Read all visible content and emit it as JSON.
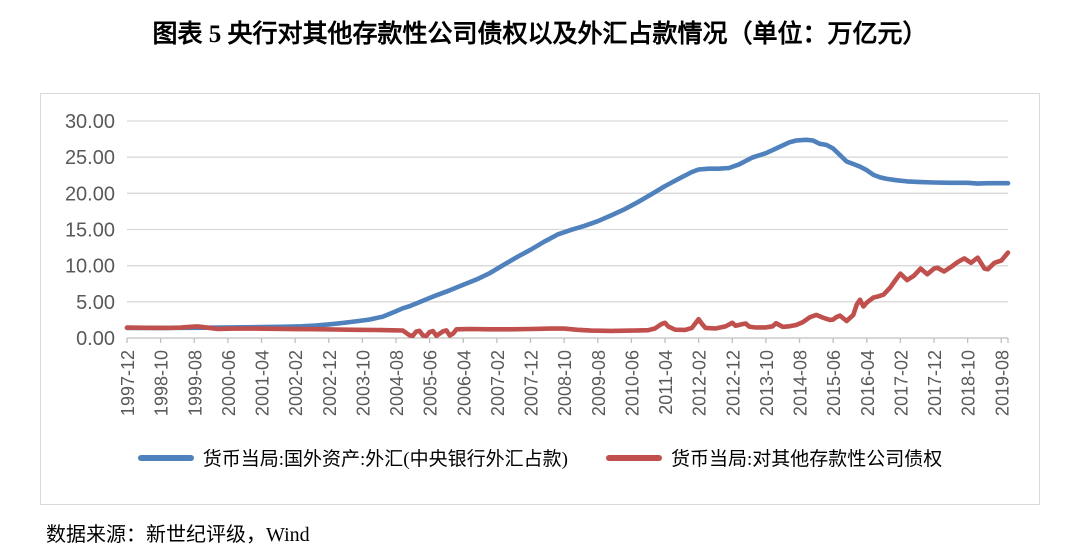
{
  "title": "图表 5  央行对其他存款性公司债权以及外汇占款情况（单位：万亿元）",
  "source": "数据来源：新世纪评级，Wind",
  "colors": {
    "fx_series": "#4f81bd",
    "claims_series": "#c0504d",
    "gridline": "#d9d9d9",
    "axis": "#bfbfbf",
    "tick_label": "#595959",
    "frame_border": "#d9d9d9"
  },
  "chart_data": {
    "type": "line",
    "title": "图表 5  央行对其他存款性公司债权以及外汇占款情况（单位：万亿元）",
    "unit": "万亿元",
    "grid": "horizontal",
    "legend_position": "bottom",
    "y_axis": {
      "min": 0,
      "max": 30,
      "step": 5,
      "tick_labels": [
        "0.00",
        "5.00",
        "10.00",
        "15.00",
        "20.00",
        "25.00",
        "30.00"
      ]
    },
    "x_axis": {
      "start": "1997-12",
      "end": "2019-08",
      "months_per_tick": 10,
      "month_span": 262,
      "tick_labels": [
        "1997-12",
        "1998-10",
        "1999-08",
        "2000-06",
        "2001-04",
        "2002-02",
        "2002-12",
        "2003-10",
        "2004-08",
        "2005-06",
        "2006-04",
        "2007-02",
        "2007-12",
        "2008-10",
        "2009-08",
        "2010-06",
        "2011-04",
        "2012-02",
        "2012-12",
        "2013-10",
        "2014-08",
        "2015-06",
        "2016-04",
        "2017-02",
        "2017-12",
        "2018-10",
        "2019-08"
      ]
    },
    "series": [
      {
        "id": "fx",
        "name": "货币当局:国外资产:外汇(中央银行外汇占款)",
        "color": "#4f81bd",
        "points": [
          [
            0,
            1.39
          ],
          [
            8,
            1.4
          ],
          [
            16,
            1.41
          ],
          [
            24,
            1.43
          ],
          [
            32,
            1.46
          ],
          [
            40,
            1.5
          ],
          [
            46,
            1.55
          ],
          [
            52,
            1.62
          ],
          [
            56,
            1.72
          ],
          [
            60,
            1.88
          ],
          [
            64,
            2.08
          ],
          [
            68,
            2.3
          ],
          [
            72,
            2.55
          ],
          [
            76,
            2.95
          ],
          [
            80,
            3.7
          ],
          [
            82,
            4.1
          ],
          [
            84,
            4.4
          ],
          [
            88,
            5.15
          ],
          [
            92,
            5.9
          ],
          [
            96,
            6.6
          ],
          [
            100,
            7.35
          ],
          [
            104,
            8.1
          ],
          [
            108,
            9.0
          ],
          [
            112,
            10.1
          ],
          [
            116,
            11.2
          ],
          [
            120,
            12.2
          ],
          [
            124,
            13.3
          ],
          [
            128,
            14.3
          ],
          [
            132,
            14.95
          ],
          [
            136,
            15.5
          ],
          [
            140,
            16.15
          ],
          [
            144,
            16.95
          ],
          [
            148,
            17.8
          ],
          [
            152,
            18.8
          ],
          [
            156,
            19.9
          ],
          [
            160,
            21.0
          ],
          [
            164,
            22.0
          ],
          [
            168,
            22.95
          ],
          [
            170,
            23.3
          ],
          [
            173,
            23.4
          ],
          [
            176,
            23.4
          ],
          [
            179,
            23.5
          ],
          [
            182,
            24.0
          ],
          [
            186,
            24.95
          ],
          [
            190,
            25.55
          ],
          [
            194,
            26.4
          ],
          [
            197,
            27.05
          ],
          [
            199,
            27.3
          ],
          [
            202,
            27.4
          ],
          [
            204,
            27.3
          ],
          [
            206,
            26.85
          ],
          [
            208,
            26.7
          ],
          [
            210,
            26.2
          ],
          [
            212,
            25.3
          ],
          [
            214,
            24.4
          ],
          [
            216,
            24.05
          ],
          [
            218,
            23.7
          ],
          [
            220,
            23.2
          ],
          [
            222,
            22.55
          ],
          [
            224,
            22.2
          ],
          [
            226,
            22.0
          ],
          [
            229,
            21.8
          ],
          [
            232,
            21.65
          ],
          [
            236,
            21.55
          ],
          [
            240,
            21.5
          ],
          [
            245,
            21.45
          ],
          [
            250,
            21.45
          ],
          [
            253,
            21.35
          ],
          [
            256,
            21.4
          ],
          [
            262,
            21.4
          ]
        ]
      },
      {
        "id": "claims",
        "name": "货币当局:对其他存款性公司债权",
        "color": "#c0504d",
        "points": [
          [
            0,
            1.44
          ],
          [
            6,
            1.41
          ],
          [
            12,
            1.4
          ],
          [
            16,
            1.44
          ],
          [
            19,
            1.55
          ],
          [
            21,
            1.6
          ],
          [
            24,
            1.42
          ],
          [
            27,
            1.25
          ],
          [
            30,
            1.28
          ],
          [
            34,
            1.32
          ],
          [
            38,
            1.3
          ],
          [
            44,
            1.27
          ],
          [
            50,
            1.23
          ],
          [
            56,
            1.21
          ],
          [
            62,
            1.18
          ],
          [
            68,
            1.14
          ],
          [
            74,
            1.1
          ],
          [
            79,
            1.07
          ],
          [
            82,
            1.04
          ],
          [
            84,
            0.38
          ],
          [
            85,
            0.3
          ],
          [
            86,
            0.88
          ],
          [
            87,
            1.0
          ],
          [
            88,
            0.34
          ],
          [
            89,
            0.28
          ],
          [
            90,
            0.82
          ],
          [
            91,
            0.95
          ],
          [
            92,
            0.3
          ],
          [
            94,
            0.92
          ],
          [
            95,
            1.05
          ],
          [
            96,
            0.35
          ],
          [
            97,
            0.62
          ],
          [
            98,
            1.2
          ],
          [
            102,
            1.24
          ],
          [
            108,
            1.2
          ],
          [
            114,
            1.2
          ],
          [
            120,
            1.25
          ],
          [
            126,
            1.3
          ],
          [
            130,
            1.3
          ],
          [
            134,
            1.14
          ],
          [
            138,
            1.02
          ],
          [
            144,
            0.98
          ],
          [
            150,
            1.02
          ],
          [
            155,
            1.08
          ],
          [
            157,
            1.32
          ],
          [
            159,
            1.95
          ],
          [
            160,
            2.1
          ],
          [
            161,
            1.58
          ],
          [
            163,
            1.15
          ],
          [
            166,
            1.12
          ],
          [
            168,
            1.4
          ],
          [
            170,
            2.6
          ],
          [
            171,
            1.95
          ],
          [
            172,
            1.4
          ],
          [
            175,
            1.32
          ],
          [
            178,
            1.6
          ],
          [
            180,
            2.1
          ],
          [
            181,
            1.68
          ],
          [
            183,
            1.92
          ],
          [
            184,
            2.0
          ],
          [
            185,
            1.58
          ],
          [
            187,
            1.45
          ],
          [
            190,
            1.46
          ],
          [
            192,
            1.62
          ],
          [
            193,
            2.05
          ],
          [
            195,
            1.55
          ],
          [
            197,
            1.62
          ],
          [
            199,
            1.8
          ],
          [
            201,
            2.2
          ],
          [
            203,
            2.85
          ],
          [
            205,
            3.2
          ],
          [
            207,
            2.8
          ],
          [
            209,
            2.5
          ],
          [
            210,
            2.55
          ],
          [
            211,
            2.9
          ],
          [
            212,
            3.1
          ],
          [
            214,
            2.35
          ],
          [
            216,
            3.2
          ],
          [
            217,
            4.6
          ],
          [
            218,
            5.3
          ],
          [
            219,
            4.35
          ],
          [
            220,
            4.9
          ],
          [
            222,
            5.6
          ],
          [
            223,
            5.7
          ],
          [
            225,
            6.0
          ],
          [
            227,
            7.0
          ],
          [
            229,
            8.3
          ],
          [
            230,
            8.9
          ],
          [
            232,
            8.0
          ],
          [
            234,
            8.6
          ],
          [
            236,
            9.6
          ],
          [
            238,
            8.8
          ],
          [
            240,
            9.6
          ],
          [
            241,
            9.7
          ],
          [
            243,
            9.2
          ],
          [
            245,
            9.8
          ],
          [
            247,
            10.5
          ],
          [
            249,
            11.0
          ],
          [
            251,
            10.4
          ],
          [
            253,
            11.1
          ],
          [
            255,
            9.6
          ],
          [
            256,
            9.5
          ],
          [
            258,
            10.4
          ],
          [
            260,
            10.7
          ],
          [
            262,
            11.8
          ]
        ]
      }
    ]
  }
}
